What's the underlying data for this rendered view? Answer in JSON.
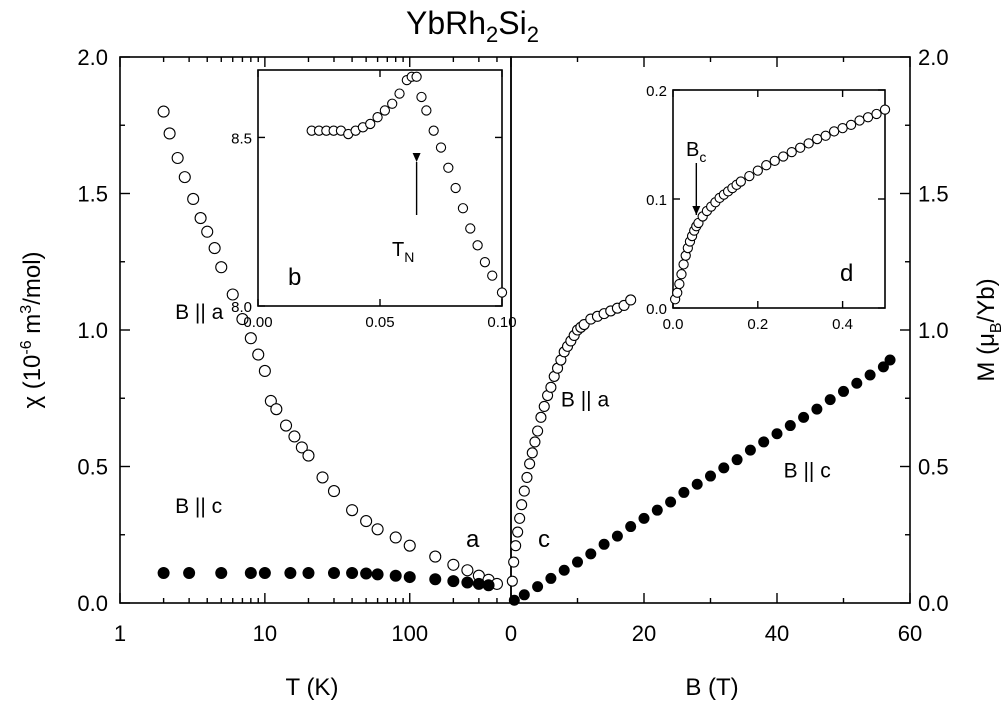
{
  "title_main": "YbRh",
  "title_sub1": "2",
  "title_mid": "Si",
  "title_sub2": "2",
  "chart_data": [
    {
      "id": "a",
      "type": "scatter",
      "panel_label": "a",
      "xscale": "log",
      "xlim": [
        1,
        500
      ],
      "ylim": [
        0,
        2.0
      ],
      "xlabel": "T (K)",
      "ylabel": "χ (10^-6 m^3/mol)",
      "ylabel_parts": {
        "pre": "χ (10",
        "exp1": "-6",
        "mid": " m",
        "exp2": "3",
        "post": "/mol)"
      },
      "x_ticks": [
        {
          "v": 1,
          "label": "1"
        },
        {
          "v": 10,
          "label": "10"
        },
        {
          "v": 100,
          "label": "100"
        }
      ],
      "y_ticks": [
        {
          "v": 0,
          "label": "0.0"
        },
        {
          "v": 0.5,
          "label": "0.5"
        },
        {
          "v": 1.0,
          "label": "1.0"
        },
        {
          "v": 1.5,
          "label": "1.5"
        },
        {
          "v": 2.0,
          "label": "2.0"
        }
      ],
      "annotations": [
        {
          "text": "B || a",
          "x": 2.4,
          "y": 1.04
        },
        {
          "text": "B || c",
          "x": 2.4,
          "y": 0.33
        }
      ],
      "series": [
        {
          "label": "B || a",
          "marker": "open",
          "x": [
            2,
            2.2,
            2.5,
            2.8,
            3.2,
            3.6,
            4,
            4.5,
            5,
            6,
            7,
            8,
            9,
            10,
            11,
            12,
            14,
            16,
            18,
            20,
            25,
            30,
            40,
            50,
            60,
            80,
            100,
            150,
            200,
            250,
            300,
            350,
            400
          ],
          "y": [
            1.8,
            1.72,
            1.63,
            1.56,
            1.48,
            1.41,
            1.36,
            1.3,
            1.23,
            1.13,
            1.04,
            0.97,
            0.91,
            0.85,
            0.74,
            0.71,
            0.65,
            0.61,
            0.57,
            0.54,
            0.46,
            0.41,
            0.34,
            0.3,
            0.27,
            0.24,
            0.21,
            0.17,
            0.14,
            0.12,
            0.1,
            0.085,
            0.07
          ]
        },
        {
          "label": "B || c",
          "marker": "filled",
          "x": [
            2,
            3,
            5,
            8,
            10,
            15,
            20,
            30,
            40,
            50,
            60,
            80,
            100,
            150,
            200,
            250,
            300,
            350
          ],
          "y": [
            0.11,
            0.11,
            0.11,
            0.11,
            0.11,
            0.11,
            0.11,
            0.11,
            0.11,
            0.108,
            0.105,
            0.1,
            0.095,
            0.087,
            0.08,
            0.075,
            0.07,
            0.065
          ]
        }
      ]
    },
    {
      "id": "b",
      "type": "scatter",
      "panel_label": "b",
      "inset": true,
      "xlim": [
        0,
        0.1
      ],
      "ylim": [
        8.0,
        8.7
      ],
      "x_ticks": [
        {
          "v": 0,
          "label": "0.00"
        },
        {
          "v": 0.05,
          "label": "0.05"
        },
        {
          "v": 0.1,
          "label": "0.10"
        }
      ],
      "y_ticks": [
        {
          "v": 8.0,
          "label": "8.0"
        },
        {
          "v": 8.5,
          "label": "8.5"
        }
      ],
      "annotation": {
        "text": "T",
        "sub": "N",
        "x": 0.065
      },
      "series": [
        {
          "marker": "open",
          "x": [
            0.022,
            0.025,
            0.028,
            0.031,
            0.034,
            0.037,
            0.04,
            0.043,
            0.046,
            0.049,
            0.052,
            0.055,
            0.058,
            0.061,
            0.063,
            0.065,
            0.067,
            0.069,
            0.072,
            0.075,
            0.078,
            0.081,
            0.084,
            0.087,
            0.09,
            0.093,
            0.096,
            0.1
          ],
          "y": [
            8.52,
            8.52,
            8.52,
            8.52,
            8.52,
            8.51,
            8.52,
            8.53,
            8.54,
            8.56,
            8.58,
            8.6,
            8.63,
            8.67,
            8.68,
            8.68,
            8.62,
            8.58,
            8.52,
            8.47,
            8.41,
            8.35,
            8.29,
            8.23,
            8.18,
            8.13,
            8.09,
            8.04
          ]
        }
      ]
    },
    {
      "id": "c",
      "type": "scatter",
      "panel_label": "c",
      "xlim": [
        0,
        60
      ],
      "ylim": [
        0,
        2.0
      ],
      "xlabel": "B (T)",
      "ylabel": "M (μB/Yb)",
      "ylabel_parts": {
        "pre": "M (μ",
        "sub": "B",
        "post": "/Yb)"
      },
      "x_ticks": [
        {
          "v": 0,
          "label": "0"
        },
        {
          "v": 20,
          "label": "20"
        },
        {
          "v": 40,
          "label": "40"
        },
        {
          "v": 60,
          "label": "60"
        }
      ],
      "y_ticks": [
        {
          "v": 0,
          "label": "0.0"
        },
        {
          "v": 0.5,
          "label": "0.5"
        },
        {
          "v": 1.0,
          "label": "1.0"
        },
        {
          "v": 1.5,
          "label": "1.5"
        },
        {
          "v": 2.0,
          "label": "2.0"
        }
      ],
      "annotations": [
        {
          "text": "B || a",
          "x": 7.5,
          "y": 0.72
        },
        {
          "text": "B || c",
          "x": 41,
          "y": 0.46
        }
      ],
      "series": [
        {
          "label": "B || a",
          "marker": "open",
          "x": [
            0.2,
            0.4,
            0.7,
            1,
            1.3,
            1.6,
            2,
            2.4,
            2.8,
            3.2,
            3.6,
            4,
            4.5,
            5,
            5.5,
            6,
            6.5,
            7,
            7.5,
            8,
            8.5,
            9,
            9.5,
            10,
            10.5,
            11,
            12,
            13,
            14,
            15,
            16,
            17,
            18
          ],
          "y": [
            0.08,
            0.15,
            0.21,
            0.26,
            0.31,
            0.36,
            0.41,
            0.46,
            0.51,
            0.55,
            0.59,
            0.63,
            0.68,
            0.72,
            0.76,
            0.79,
            0.83,
            0.86,
            0.89,
            0.92,
            0.94,
            0.96,
            0.98,
            1.0,
            1.01,
            1.02,
            1.04,
            1.05,
            1.06,
            1.07,
            1.08,
            1.09,
            1.11
          ]
        },
        {
          "label": "B || c",
          "marker": "filled",
          "x": [
            0.5,
            2,
            4,
            6,
            8,
            10,
            12,
            14,
            16,
            18,
            20,
            22,
            24,
            26,
            28,
            30,
            32,
            34,
            36,
            38,
            40,
            42,
            44,
            46,
            48,
            50,
            52,
            54,
            56,
            57
          ],
          "y": [
            0.01,
            0.03,
            0.06,
            0.09,
            0.12,
            0.15,
            0.18,
            0.215,
            0.245,
            0.28,
            0.31,
            0.34,
            0.37,
            0.405,
            0.435,
            0.465,
            0.495,
            0.525,
            0.56,
            0.59,
            0.62,
            0.65,
            0.68,
            0.71,
            0.745,
            0.775,
            0.805,
            0.835,
            0.865,
            0.89
          ]
        }
      ]
    },
    {
      "id": "d",
      "type": "scatter",
      "panel_label": "d",
      "inset": true,
      "xlim": [
        0,
        0.5
      ],
      "ylim": [
        0,
        0.2
      ],
      "x_ticks": [
        {
          "v": 0,
          "label": "0.0"
        },
        {
          "v": 0.2,
          "label": "0.2"
        },
        {
          "v": 0.4,
          "label": "0.4"
        }
      ],
      "y_ticks": [
        {
          "v": 0,
          "label": "0.0"
        },
        {
          "v": 0.1,
          "label": "0.1"
        },
        {
          "v": 0.2,
          "label": "0.2"
        }
      ],
      "annotation": {
        "text": "B",
        "sub": "c",
        "x": 0.055
      },
      "series": [
        {
          "marker": "open",
          "x": [
            0.005,
            0.01,
            0.015,
            0.02,
            0.025,
            0.03,
            0.035,
            0.04,
            0.045,
            0.05,
            0.055,
            0.06,
            0.07,
            0.08,
            0.09,
            0.1,
            0.11,
            0.12,
            0.13,
            0.14,
            0.15,
            0.16,
            0.18,
            0.2,
            0.22,
            0.24,
            0.26,
            0.28,
            0.3,
            0.32,
            0.34,
            0.36,
            0.38,
            0.4,
            0.42,
            0.44,
            0.46,
            0.48,
            0.5
          ],
          "y": [
            0.008,
            0.014,
            0.022,
            0.031,
            0.04,
            0.048,
            0.055,
            0.061,
            0.066,
            0.071,
            0.075,
            0.078,
            0.084,
            0.089,
            0.093,
            0.097,
            0.101,
            0.104,
            0.107,
            0.11,
            0.113,
            0.116,
            0.121,
            0.126,
            0.131,
            0.135,
            0.139,
            0.143,
            0.147,
            0.151,
            0.155,
            0.158,
            0.162,
            0.165,
            0.168,
            0.172,
            0.175,
            0.178,
            0.182
          ]
        }
      ]
    }
  ]
}
